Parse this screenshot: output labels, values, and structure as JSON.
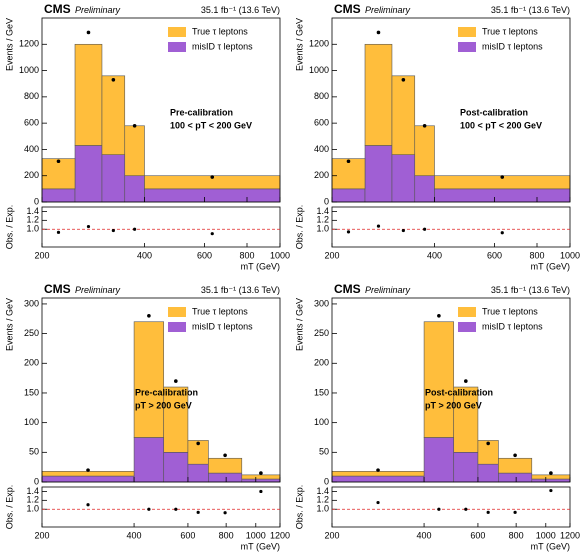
{
  "chart_data": [
    {
      "type": "stacked_histogram",
      "experiment": "CMS",
      "status": "Preliminary",
      "lumi": "35.1 fb⁻¹ (13.6 TeV)",
      "region_label": [
        "Pre-calibration",
        "100 < pT < 200 GeV"
      ],
      "ylabel": "Events / GeV",
      "ratio_ylabel": "Obs. / Exp.",
      "xlabel": "mT (GeV)",
      "bins": [
        200,
        250,
        300,
        350,
        400,
        1000
      ],
      "xlog": true,
      "xlim": [
        200,
        1000
      ],
      "xticks": [
        200,
        400,
        600,
        800,
        1000
      ],
      "ylim": [
        0,
        1400
      ],
      "yticks": [
        0,
        200,
        400,
        600,
        800,
        1000,
        1200
      ],
      "series": [
        {
          "name": "misID τ leptons",
          "color": "#a05fd4",
          "values": [
            100,
            430,
            360,
            200,
            100
          ]
        },
        {
          "name": "True τ leptons",
          "color": "#ffbe3c",
          "values": [
            230,
            770,
            600,
            380,
            100
          ]
        }
      ],
      "observed": [
        310,
        1290,
        930,
        580,
        190
      ],
      "ratio": [
        0.93,
        1.06,
        0.97,
        1.0,
        0.9
      ],
      "ratio_reference": 1,
      "ratio_ylim": [
        0.6,
        1.5
      ],
      "ratio_yticks": [
        {
          "value": 1,
          "label": "1.0"
        },
        1.2,
        1.4
      ]
    },
    {
      "type": "stacked_histogram",
      "experiment": "CMS",
      "status": "Preliminary",
      "lumi": "35.1 fb⁻¹ (13.6 TeV)",
      "region_label": [
        "Post-calibration",
        "100 < pT < 200 GeV"
      ],
      "ylabel": "Events / GeV",
      "ratio_ylabel": "Obs. / Exp.",
      "xlabel": "mT (GeV)",
      "bins": [
        200,
        250,
        300,
        350,
        400,
        1000
      ],
      "xlog": true,
      "xlim": [
        200,
        1000
      ],
      "xticks": [
        200,
        400,
        600,
        800,
        1000
      ],
      "ylim": [
        0,
        1400
      ],
      "yticks": [
        0,
        200,
        400,
        600,
        800,
        1000,
        1200
      ],
      "series": [
        {
          "name": "misID τ leptons",
          "color": "#a05fd4",
          "values": [
            100,
            430,
            360,
            200,
            100
          ]
        },
        {
          "name": "True τ leptons",
          "color": "#ffbe3c",
          "values": [
            230,
            770,
            600,
            380,
            100
          ]
        }
      ],
      "observed": [
        310,
        1290,
        930,
        580,
        190
      ],
      "ratio": [
        0.94,
        1.07,
        0.97,
        1.0,
        0.92
      ],
      "ratio_reference": 1,
      "ratio_ylim": [
        0.6,
        1.5
      ],
      "ratio_yticks": [
        {
          "value": 1,
          "label": "1.0"
        },
        1.2,
        1.4
      ]
    },
    {
      "type": "stacked_histogram",
      "experiment": "CMS",
      "status": "Preliminary",
      "lumi": "35.1 fb⁻¹ (13.6 TeV)",
      "region_label": [
        "Pre-calibration",
        "pT > 200 GeV"
      ],
      "ylabel": "Events / GeV",
      "ratio_ylabel": "Obs. / Exp.",
      "xlabel": "mT (GeV)",
      "bins": [
        200,
        400,
        500,
        600,
        700,
        900,
        1200
      ],
      "xlog": true,
      "xlim": [
        200,
        1200
      ],
      "xticks": [
        200,
        400,
        600,
        800,
        1000,
        1200
      ],
      "ylim": [
        0,
        310
      ],
      "yticks": [
        0,
        50,
        100,
        150,
        200,
        250,
        300
      ],
      "series": [
        {
          "name": "misID τ leptons",
          "color": "#a05fd4",
          "values": [
            10,
            75,
            50,
            30,
            15,
            5
          ]
        },
        {
          "name": "True τ leptons",
          "color": "#ffbe3c",
          "values": [
            8,
            195,
            110,
            40,
            25,
            7
          ]
        }
      ],
      "observed": [
        20,
        280,
        170,
        65,
        45,
        15
      ],
      "ratio": [
        1.1,
        1.0,
        1.0,
        0.93,
        0.92,
        1.4
      ],
      "ratio_reference": 1,
      "ratio_ylim": [
        0.6,
        1.5
      ],
      "ratio_yticks": [
        {
          "value": 1,
          "label": "1.0"
        },
        1.2,
        1.4
      ]
    },
    {
      "type": "stacked_histogram",
      "experiment": "CMS",
      "status": "Preliminary",
      "lumi": "35.1 fb⁻¹ (13.6 TeV)",
      "region_label": [
        "Post-calibration",
        "pT > 200 GeV"
      ],
      "ylabel": "Events / GeV",
      "ratio_ylabel": "Obs. / Exp.",
      "xlabel": "mT (GeV)",
      "bins": [
        200,
        400,
        500,
        600,
        700,
        900,
        1200
      ],
      "xlog": true,
      "xlim": [
        200,
        1200
      ],
      "xticks": [
        200,
        400,
        600,
        800,
        1000,
        1200
      ],
      "ylim": [
        0,
        310
      ],
      "yticks": [
        0,
        50,
        100,
        150,
        200,
        250,
        300
      ],
      "series": [
        {
          "name": "misID τ leptons",
          "color": "#a05fd4",
          "values": [
            10,
            75,
            50,
            30,
            15,
            5
          ]
        },
        {
          "name": "True τ leptons",
          "color": "#ffbe3c",
          "values": [
            8,
            195,
            110,
            40,
            25,
            7
          ]
        }
      ],
      "observed": [
        20,
        280,
        170,
        65,
        45,
        15
      ],
      "ratio": [
        1.15,
        1.0,
        1.0,
        0.93,
        0.93,
        1.42
      ],
      "ratio_reference": 1,
      "ratio_ylim": [
        0.6,
        1.5
      ],
      "ratio_yticks": [
        {
          "value": 1,
          "label": "1.0"
        },
        1.2,
        1.4
      ]
    }
  ]
}
